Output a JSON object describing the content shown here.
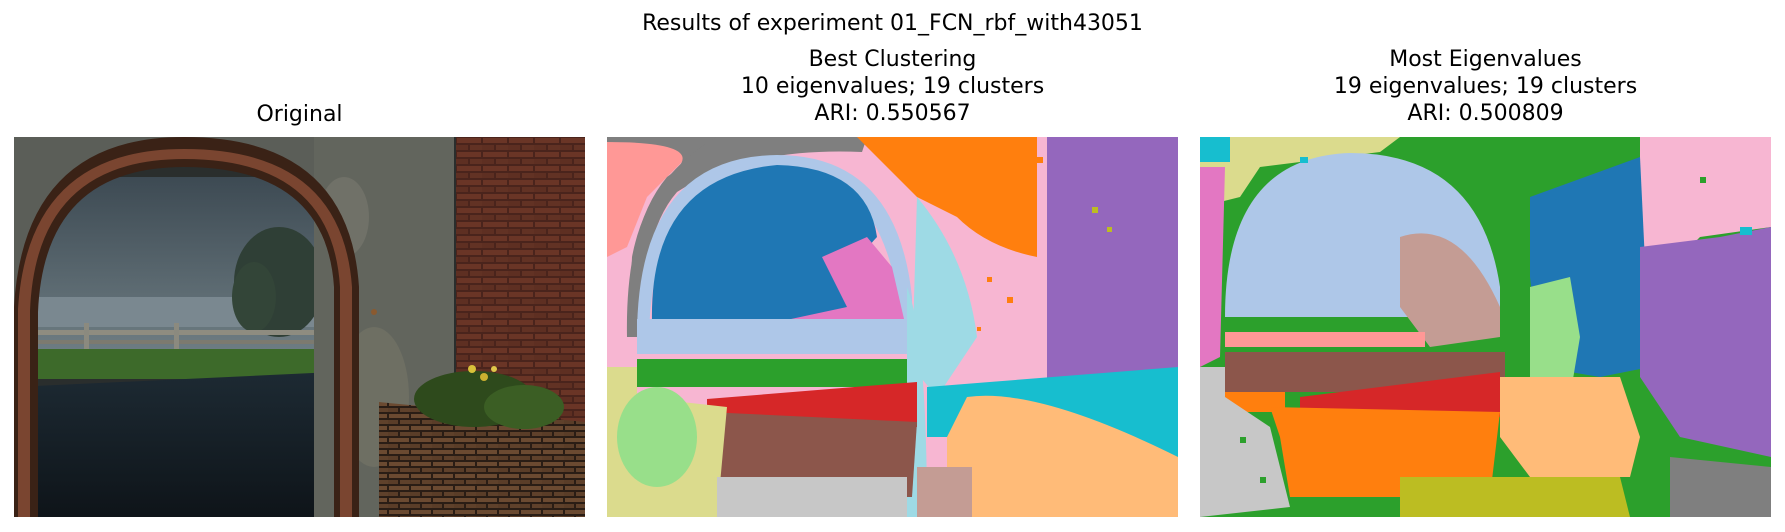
{
  "figure": {
    "suptitle": "Results of experiment 01_FCN_rbf_with43051"
  },
  "panels": [
    {
      "title_lines": [
        "Original"
      ]
    },
    {
      "title_lines": [
        "Best Clustering",
        "10 eigenvalues; 19 clusters",
        "ARI: 0.550567"
      ]
    },
    {
      "title_lines": [
        "Most Eigenvalues",
        "19 eigenvalues; 19 clusters",
        "ARI: 0.500809"
      ]
    }
  ],
  "palette": {
    "blue": "#1f77b4",
    "lightblue": "#aec7e8",
    "orange": "#ff7f0e",
    "lightorange": "#ffbb78",
    "green": "#2ca02c",
    "lightgreen": "#98df8a",
    "red": "#d62728",
    "pink": "#ff9896",
    "purple": "#9467bd",
    "brown": "#8c564b",
    "tan": "#c49c94",
    "magenta": "#e377c2",
    "lightpink": "#f7b6d2",
    "gray": "#7f7f7f",
    "lightgray": "#c7c7c7",
    "olive": "#bcbd22",
    "khaki": "#dbdb8d",
    "cyan": "#17becf",
    "lightcyan": "#9edae5"
  }
}
